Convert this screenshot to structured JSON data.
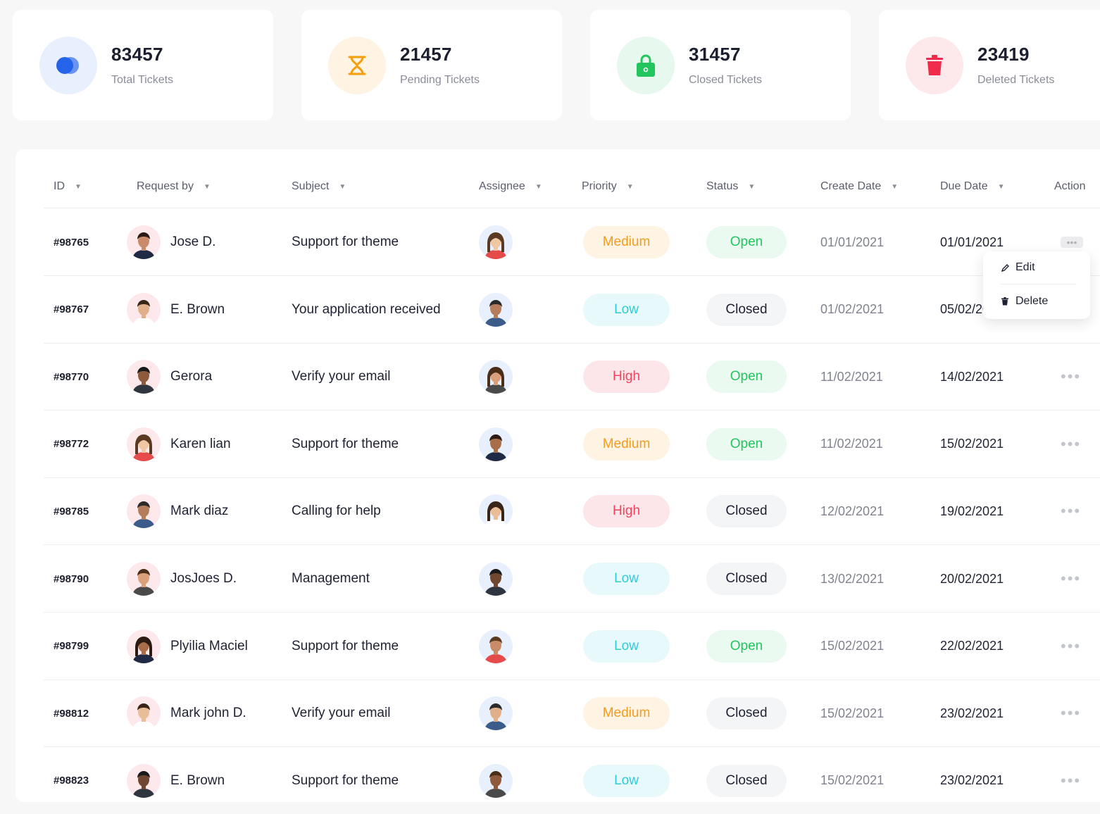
{
  "colors": {
    "total": "#2563eb",
    "pending": "#f59e0b",
    "closed_icon": "#22c55e",
    "deleted": "#ef2a4a",
    "medium_bg": "#fff3e3",
    "medium_fg": "#f29d1e",
    "low_bg": "#e7f9fa",
    "low_fg": "#2ccdd6",
    "high_bg": "#fde6ea",
    "high_fg": "#f0435e",
    "open_bg": "#eafaf0",
    "open_fg": "#22c55e",
    "closed_bg": "#f4f5f6",
    "closed_fg": "#1f2233"
  },
  "stats": [
    {
      "value": "83457",
      "label": "Total Tickets",
      "icon": "circles-icon"
    },
    {
      "value": "21457",
      "label": "Pending Tickets",
      "icon": "hourglass-icon"
    },
    {
      "value": "31457",
      "label": "Closed Tickets",
      "icon": "lock-icon"
    },
    {
      "value": "23419",
      "label": "Deleted Tickets",
      "icon": "trash-icon"
    }
  ],
  "table": {
    "headers": {
      "id": "ID",
      "request_by": "Request by",
      "subject": "Subject",
      "assignee": "Assignee",
      "priority": "Priority",
      "status": "Status",
      "create_date": "Create Date",
      "due_date": "Due Date",
      "action": "Action"
    },
    "rows": [
      {
        "id": "#98765",
        "name": "Jose D.",
        "subject": "Support for theme",
        "priority": "Medium",
        "status": "Open",
        "create": "01/01/2021",
        "due": "01/01/2021"
      },
      {
        "id": "#98767",
        "name": "E. Brown",
        "subject": "Your application received",
        "priority": "Low",
        "status": "Closed",
        "create": "01/02/2021",
        "due": "05/02/2021"
      },
      {
        "id": "#98770",
        "name": "Gerora",
        "subject": "Verify your email",
        "priority": "High",
        "status": "Open",
        "create": "11/02/2021",
        "due": "14/02/2021"
      },
      {
        "id": "#98772",
        "name": "Karen lian",
        "subject": "Support for theme",
        "priority": "Medium",
        "status": "Open",
        "create": "11/02/2021",
        "due": "15/02/2021"
      },
      {
        "id": "#98785",
        "name": "Mark diaz",
        "subject": "Calling for help",
        "priority": "High",
        "status": "Closed",
        "create": "12/02/2021",
        "due": "19/02/2021"
      },
      {
        "id": "#98790",
        "name": "JosJoes  D.",
        "subject": "Management",
        "priority": "Low",
        "status": "Closed",
        "create": "13/02/2021",
        "due": "20/02/2021"
      },
      {
        "id": "#98799",
        "name": "Plyilia Maciel",
        "subject": "Support for theme",
        "priority": "Low",
        "status": "Open",
        "create": "15/02/2021",
        "due": "22/02/2021"
      },
      {
        "id": "#98812",
        "name": "Mark john D.",
        "subject": "Verify your email",
        "priority": "Medium",
        "status": "Closed",
        "create": "15/02/2021",
        "due": "23/02/2021"
      },
      {
        "id": "#98823",
        "name": "E. Brown",
        "subject": "Support for theme",
        "priority": "Low",
        "status": "Closed",
        "create": "15/02/2021",
        "due": "23/02/2021"
      }
    ]
  },
  "action_menu": {
    "edit": "Edit",
    "delete": "Delete"
  }
}
